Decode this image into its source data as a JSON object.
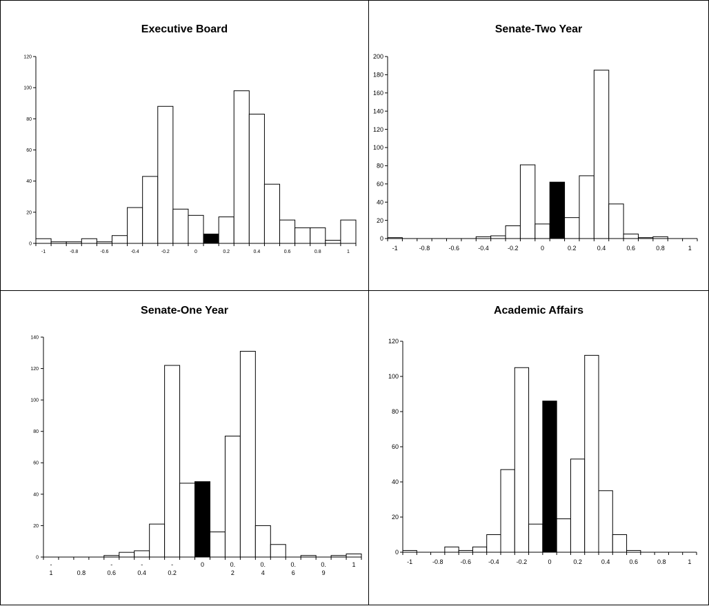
{
  "colors": {
    "bar_fill": "#ffffff",
    "highlight_fill": "#000000",
    "stroke": "#000000"
  },
  "chart_data": [
    {
      "type": "bar",
      "title": "Executive Board",
      "xlabel": "",
      "ylabel": "",
      "ylim": [
        0,
        120
      ],
      "y_ticks": [
        "0",
        "20",
        "40",
        "60",
        "80",
        "100",
        "120"
      ],
      "x_ticks": [
        "-1",
        "-0.8",
        "-0.6",
        "-0.4",
        "-0.2",
        "0",
        "0.2",
        "0.4",
        "0.6",
        "0.8",
        "1"
      ],
      "values": [
        3,
        1,
        1,
        3,
        1,
        5,
        23,
        43,
        88,
        22,
        18,
        6,
        17,
        98,
        83,
        38,
        15,
        10,
        10,
        2,
        15
      ],
      "highlight_index": 11,
      "grid": false,
      "legend": "none"
    },
    {
      "type": "bar",
      "title": "Senate-Two Year",
      "xlabel": "",
      "ylabel": "",
      "ylim": [
        0,
        200
      ],
      "y_ticks": [
        "0",
        "20",
        "40",
        "60",
        "80",
        "100",
        "120",
        "140",
        "160",
        "180",
        "200"
      ],
      "x_ticks": [
        "-1",
        "-0.8",
        "-0.6",
        "-0.4",
        "-0.2",
        "0",
        "0.2",
        "0.4",
        "0.6",
        "0.8",
        "1"
      ],
      "values": [
        1,
        0,
        0,
        0,
        0,
        0,
        2,
        3,
        14,
        81,
        16,
        62,
        23,
        69,
        185,
        38,
        5,
        1,
        2,
        0,
        0
      ],
      "highlight_index": 11,
      "grid": false,
      "legend": "none"
    },
    {
      "type": "bar",
      "title": "Senate-One Year",
      "xlabel": "",
      "ylabel": "",
      "ylim": [
        0,
        140
      ],
      "y_ticks": [
        "0",
        "20",
        "40",
        "60",
        "80",
        "100",
        "120",
        "140"
      ],
      "x_ticks": [
        [
          "-",
          "1"
        ],
        [
          "",
          "0.8"
        ],
        [
          "-",
          "0.6"
        ],
        [
          "-",
          "0.4"
        ],
        [
          "-",
          "0.2"
        ],
        [
          "0",
          ""
        ],
        [
          "0.",
          "2"
        ],
        [
          "0.",
          "4"
        ],
        [
          "0.",
          "6"
        ],
        [
          "0.",
          "9"
        ],
        [
          "1",
          ""
        ]
      ],
      "values": [
        0,
        0,
        0,
        0,
        1,
        3,
        4,
        21,
        122,
        47,
        48,
        16,
        77,
        131,
        20,
        8,
        0,
        1,
        0,
        1,
        2
      ],
      "highlight_index": 10,
      "grid": false,
      "legend": "none"
    },
    {
      "type": "bar",
      "title": "Academic Affairs",
      "xlabel": "",
      "ylabel": "",
      "ylim": [
        0,
        120
      ],
      "y_ticks": [
        "0",
        "20",
        "40",
        "60",
        "80",
        "100",
        "120"
      ],
      "x_ticks": [
        "-1",
        "-0.8",
        "-0.6",
        "-0.4",
        "-0.2",
        "0",
        "0.2",
        "0.4",
        "0.6",
        "0.8",
        "1"
      ],
      "values": [
        1,
        0,
        0,
        3,
        1,
        3,
        10,
        47,
        105,
        16,
        86,
        19,
        53,
        112,
        35,
        10,
        1,
        0,
        0,
        0,
        0
      ],
      "highlight_index": 10,
      "grid": false,
      "legend": "none"
    }
  ]
}
